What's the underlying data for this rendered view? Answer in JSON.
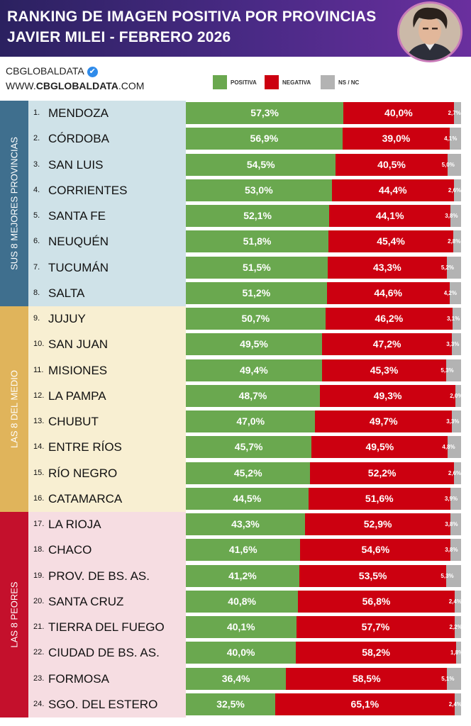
{
  "header": {
    "title_line1": "RANKING DE IMAGEN POSITIVA POR PROVINCIAS",
    "title_line2": "JAVIER MILEI - FEBRERO 2026"
  },
  "source": {
    "name": "CBGLOBALDATA",
    "verified_glyph": "✔",
    "url_prefix": "WWW.",
    "url_bold": "CBGLOBALDATA",
    "url_suffix": ".COM"
  },
  "colors": {
    "positiva": "#6aa84f",
    "negativa": "#cc0010",
    "nsnc": "#b3b3b3",
    "mejores_bg": "#cfe2e8",
    "mejores_tab": "#3f6f8e",
    "medio_bg": "#f8efd2",
    "medio_tab": "#e0b45b",
    "peores_bg": "#f6dde2",
    "peores_tab": "#c4102c"
  },
  "chart_data": {
    "type": "bar",
    "stacked": true,
    "orientation": "horizontal",
    "title": "RANKING DE IMAGEN POSITIVA POR PROVINCIAS — JAVIER MILEI - FEBRERO 2026",
    "legend": [
      {
        "key": "positiva",
        "label": "POSITIVA"
      },
      {
        "key": "negativa",
        "label": "NEGATIVA"
      },
      {
        "key": "nsnc",
        "label": "NS / NC"
      }
    ],
    "sections": [
      {
        "label": "SUS 8 MEJORES PROVINCIAS",
        "ranks": [
          1,
          8
        ],
        "tone": "mejores"
      },
      {
        "label": "LAS 8 DEL MEDIO",
        "ranks": [
          9,
          16
        ],
        "tone": "medio"
      },
      {
        "label": "LAS 8 PEORES",
        "ranks": [
          17,
          24
        ],
        "tone": "peores"
      }
    ],
    "rows": [
      {
        "rank": "1.",
        "name": "MENDOZA",
        "pos": 57.3,
        "neg": 40.0,
        "ns": 2.7,
        "pos_label": "57,3%",
        "neg_label": "40,0%",
        "ns_label": "2,7%"
      },
      {
        "rank": "2.",
        "name": "CÓRDOBA",
        "pos": 56.9,
        "neg": 39.0,
        "ns": 4.1,
        "pos_label": "56,9%",
        "neg_label": "39,0%",
        "ns_label": "4,1%"
      },
      {
        "rank": "3.",
        "name": "SAN LUIS",
        "pos": 54.5,
        "neg": 40.5,
        "ns": 5.0,
        "pos_label": "54,5%",
        "neg_label": "40,5%",
        "ns_label": "5,0%"
      },
      {
        "rank": "4.",
        "name": "CORRIENTES",
        "pos": 53.0,
        "neg": 44.4,
        "ns": 2.6,
        "pos_label": "53,0%",
        "neg_label": "44,4%",
        "ns_label": "2,6%"
      },
      {
        "rank": "5.",
        "name": "SANTA FE",
        "pos": 52.1,
        "neg": 44.1,
        "ns": 3.8,
        "pos_label": "52,1%",
        "neg_label": "44,1%",
        "ns_label": "3,8%"
      },
      {
        "rank": "6.",
        "name": "NEUQUÉN",
        "pos": 51.8,
        "neg": 45.4,
        "ns": 2.8,
        "pos_label": "51,8%",
        "neg_label": "45,4%",
        "ns_label": "2,8%"
      },
      {
        "rank": "7.",
        "name": "TUCUMÁN",
        "pos": 51.5,
        "neg": 43.3,
        "ns": 5.2,
        "pos_label": "51,5%",
        "neg_label": "43,3%",
        "ns_label": "5,2%"
      },
      {
        "rank": "8.",
        "name": "SALTA",
        "pos": 51.2,
        "neg": 44.6,
        "ns": 4.2,
        "pos_label": "51,2%",
        "neg_label": "44,6%",
        "ns_label": "4,2%"
      },
      {
        "rank": "9.",
        "name": "JUJUY",
        "pos": 50.7,
        "neg": 46.2,
        "ns": 3.1,
        "pos_label": "50,7%",
        "neg_label": "46,2%",
        "ns_label": "3,1%"
      },
      {
        "rank": "10.",
        "name": "SAN JUAN",
        "pos": 49.5,
        "neg": 47.2,
        "ns": 3.3,
        "pos_label": "49,5%",
        "neg_label": "47,2%",
        "ns_label": "3,3%"
      },
      {
        "rank": "11.",
        "name": "MISIONES",
        "pos": 49.4,
        "neg": 45.3,
        "ns": 5.3,
        "pos_label": "49,4%",
        "neg_label": "45,3%",
        "ns_label": "5,3%"
      },
      {
        "rank": "12.",
        "name": "LA PAMPA",
        "pos": 48.7,
        "neg": 49.3,
        "ns": 2.0,
        "pos_label": "48,7%",
        "neg_label": "49,3%",
        "ns_label": "2,0%"
      },
      {
        "rank": "13.",
        "name": "CHUBUT",
        "pos": 47.0,
        "neg": 49.7,
        "ns": 3.3,
        "pos_label": "47,0%",
        "neg_label": "49,7%",
        "ns_label": "3,3%"
      },
      {
        "rank": "14.",
        "name": "ENTRE RÍOS",
        "pos": 45.7,
        "neg": 49.5,
        "ns": 4.8,
        "pos_label": "45,7%",
        "neg_label": "49,5%",
        "ns_label": "4,8%"
      },
      {
        "rank": "15.",
        "name": "RÍO NEGRO",
        "pos": 45.2,
        "neg": 52.2,
        "ns": 2.6,
        "pos_label": "45,2%",
        "neg_label": "52,2%",
        "ns_label": "2,6%"
      },
      {
        "rank": "16.",
        "name": "CATAMARCA",
        "pos": 44.5,
        "neg": 51.6,
        "ns": 3.9,
        "pos_label": "44,5%",
        "neg_label": "51,6%",
        "ns_label": "3,9%"
      },
      {
        "rank": "17.",
        "name": "LA RIOJA",
        "pos": 43.3,
        "neg": 52.9,
        "ns": 3.8,
        "pos_label": "43,3%",
        "neg_label": "52,9%",
        "ns_label": "3,8%"
      },
      {
        "rank": "18.",
        "name": "CHACO",
        "pos": 41.6,
        "neg": 54.6,
        "ns": 3.8,
        "pos_label": "41,6%",
        "neg_label": "54,6%",
        "ns_label": "3,8%"
      },
      {
        "rank": "19.",
        "name": "PROV. DE BS. AS.",
        "pos": 41.2,
        "neg": 53.5,
        "ns": 5.3,
        "pos_label": "41,2%",
        "neg_label": "53,5%",
        "ns_label": "5,3%"
      },
      {
        "rank": "20.",
        "name": "SANTA CRUZ",
        "pos": 40.8,
        "neg": 56.8,
        "ns": 2.4,
        "pos_label": "40,8%",
        "neg_label": "56,8%",
        "ns_label": "2,4%"
      },
      {
        "rank": "21.",
        "name": "TIERRA DEL FUEGO",
        "pos": 40.1,
        "neg": 57.7,
        "ns": 2.2,
        "pos_label": "40,1%",
        "neg_label": "57,7%",
        "ns_label": "2,2%"
      },
      {
        "rank": "22.",
        "name": "CIUDAD DE BS. AS.",
        "pos": 40.0,
        "neg": 58.2,
        "ns": 1.8,
        "pos_label": "40,0%",
        "neg_label": "58,2%",
        "ns_label": "1,8%"
      },
      {
        "rank": "23.",
        "name": "FORMOSA",
        "pos": 36.4,
        "neg": 58.5,
        "ns": 5.1,
        "pos_label": "36,4%",
        "neg_label": "58,5%",
        "ns_label": "5,1%"
      },
      {
        "rank": "24.",
        "name": "SGO. DEL ESTERO",
        "pos": 32.5,
        "neg": 65.1,
        "ns": 2.4,
        "pos_label": "32,5%",
        "neg_label": "65,1%",
        "ns_label": "2,4%"
      }
    ]
  }
}
